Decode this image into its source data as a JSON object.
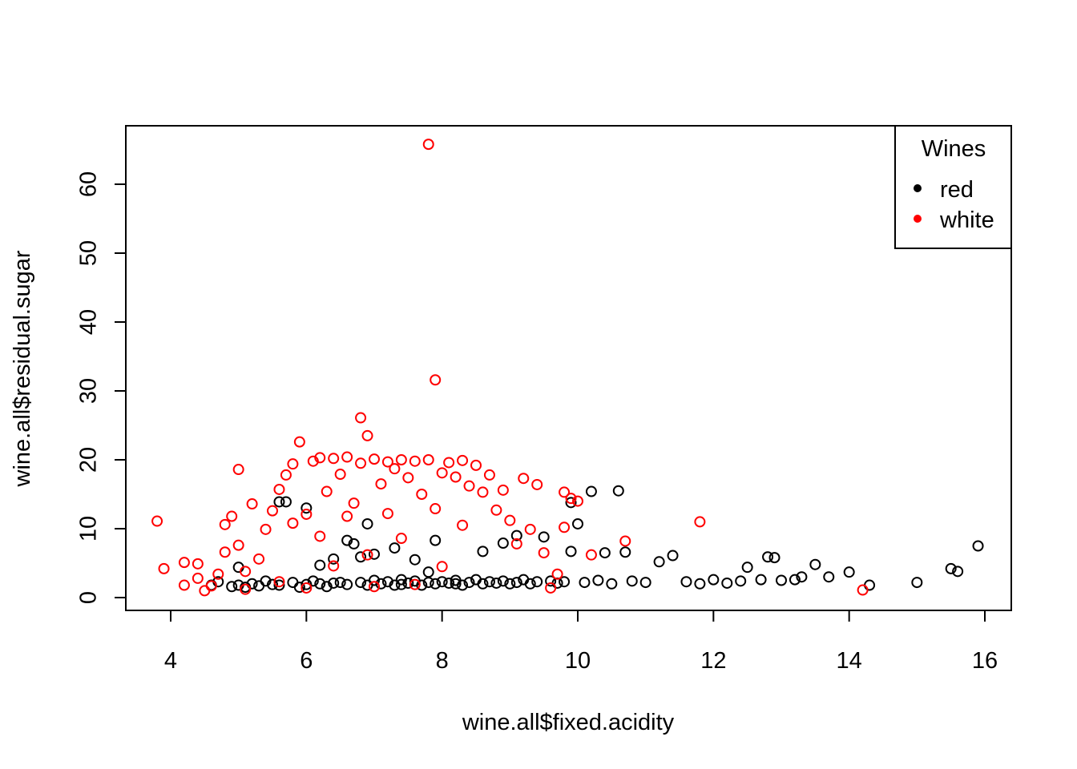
{
  "chart_data": {
    "type": "scatter",
    "title": "",
    "xlabel": "wine.all$fixed.acidity",
    "ylabel": "wine.all$residual.sugar",
    "xlim": [
      3.8,
      15.9
    ],
    "ylim": [
      0.6,
      65.8
    ],
    "x_ticks": [
      4,
      6,
      8,
      10,
      12,
      14,
      16
    ],
    "y_ticks": [
      0,
      10,
      20,
      30,
      40,
      50,
      60
    ],
    "x_tick_labels": [
      "4",
      "6",
      "8",
      "10",
      "12",
      "14",
      "16"
    ],
    "y_tick_labels": [
      "0",
      "10",
      "20",
      "30",
      "40",
      "50",
      "60"
    ],
    "grid": false,
    "legend": {
      "title": "Wines",
      "position": "top-right",
      "entries": [
        {
          "label": "red",
          "color": "#000000"
        },
        {
          "label": "white",
          "color": "#ff0000"
        }
      ]
    },
    "series": [
      {
        "name": "red",
        "color": "#000000",
        "marker": "open-circle",
        "points": [
          [
            4.6,
            1.8
          ],
          [
            4.7,
            2.3
          ],
          [
            4.9,
            1.6
          ],
          [
            5.0,
            1.8
          ],
          [
            5.0,
            4.4
          ],
          [
            5.1,
            1.5
          ],
          [
            5.2,
            2.0
          ],
          [
            5.3,
            1.7
          ],
          [
            5.4,
            2.4
          ],
          [
            5.5,
            1.9
          ],
          [
            5.6,
            1.8
          ],
          [
            5.6,
            13.9
          ],
          [
            5.7,
            13.9
          ],
          [
            5.8,
            2.2
          ],
          [
            5.9,
            1.5
          ],
          [
            6.0,
            13.0
          ],
          [
            6.0,
            1.9
          ],
          [
            6.1,
            2.4
          ],
          [
            6.2,
            2.0
          ],
          [
            6.2,
            4.7
          ],
          [
            6.3,
            1.6
          ],
          [
            6.4,
            2.1
          ],
          [
            6.4,
            5.6
          ],
          [
            6.5,
            2.2
          ],
          [
            6.6,
            1.9
          ],
          [
            6.6,
            8.3
          ],
          [
            6.7,
            7.8
          ],
          [
            6.8,
            2.2
          ],
          [
            6.8,
            5.9
          ],
          [
            6.9,
            1.8
          ],
          [
            6.9,
            10.7
          ],
          [
            7.0,
            2.5
          ],
          [
            7.0,
            6.3
          ],
          [
            7.1,
            2.0
          ],
          [
            7.2,
            2.3
          ],
          [
            7.3,
            1.8
          ],
          [
            7.3,
            7.2
          ],
          [
            7.4,
            2.6
          ],
          [
            7.4,
            1.9
          ],
          [
            7.5,
            2.1
          ],
          [
            7.6,
            2.4
          ],
          [
            7.6,
            5.5
          ],
          [
            7.7,
            1.8
          ],
          [
            7.8,
            2.2
          ],
          [
            7.8,
            3.7
          ],
          [
            7.9,
            2.0
          ],
          [
            7.9,
            8.3
          ],
          [
            8.0,
            2.3
          ],
          [
            8.1,
            2.1
          ],
          [
            8.2,
            2.5
          ],
          [
            8.2,
            2.0
          ],
          [
            8.3,
            1.8
          ],
          [
            8.4,
            2.2
          ],
          [
            8.5,
            2.6
          ],
          [
            8.6,
            2.0
          ],
          [
            8.6,
            6.7
          ],
          [
            8.7,
            2.3
          ],
          [
            8.8,
            2.1
          ],
          [
            8.9,
            2.4
          ],
          [
            8.9,
            7.9
          ],
          [
            9.0,
            2.0
          ],
          [
            9.1,
            2.2
          ],
          [
            9.1,
            9.0
          ],
          [
            9.2,
            2.6
          ],
          [
            9.3,
            2.0
          ],
          [
            9.4,
            2.3
          ],
          [
            9.5,
            8.8
          ],
          [
            9.6,
            2.4
          ],
          [
            9.7,
            2.1
          ],
          [
            9.8,
            2.3
          ],
          [
            9.9,
            6.7
          ],
          [
            9.9,
            13.8
          ],
          [
            10.0,
            10.7
          ],
          [
            10.1,
            2.2
          ],
          [
            10.2,
            15.4
          ],
          [
            10.3,
            2.5
          ],
          [
            10.4,
            6.5
          ],
          [
            10.5,
            2.0
          ],
          [
            10.6,
            15.5
          ],
          [
            10.7,
            6.6
          ],
          [
            10.8,
            2.4
          ],
          [
            11.0,
            2.2
          ],
          [
            11.2,
            5.2
          ],
          [
            11.4,
            6.1
          ],
          [
            11.6,
            2.3
          ],
          [
            11.8,
            2.0
          ],
          [
            12.0,
            2.6
          ],
          [
            12.2,
            2.1
          ],
          [
            12.4,
            2.4
          ],
          [
            12.5,
            4.4
          ],
          [
            12.7,
            2.6
          ],
          [
            12.8,
            5.9
          ],
          [
            12.9,
            5.8
          ],
          [
            13.0,
            2.5
          ],
          [
            13.2,
            2.6
          ],
          [
            13.3,
            3.0
          ],
          [
            13.5,
            4.8
          ],
          [
            13.7,
            3.0
          ],
          [
            14.0,
            3.7
          ],
          [
            14.3,
            1.8
          ],
          [
            15.0,
            2.2
          ],
          [
            15.5,
            4.2
          ],
          [
            15.6,
            3.8
          ],
          [
            15.9,
            7.5
          ]
        ]
      },
      {
        "name": "white",
        "color": "#ff0000",
        "marker": "open-circle",
        "points": [
          [
            3.8,
            11.1
          ],
          [
            3.9,
            4.2
          ],
          [
            4.2,
            5.1
          ],
          [
            4.2,
            1.8
          ],
          [
            4.4,
            2.8
          ],
          [
            4.4,
            4.9
          ],
          [
            4.5,
            1.0
          ],
          [
            4.6,
            1.7
          ],
          [
            4.7,
            3.4
          ],
          [
            4.8,
            6.6
          ],
          [
            4.8,
            10.6
          ],
          [
            4.9,
            11.8
          ],
          [
            5.0,
            18.6
          ],
          [
            5.0,
            7.6
          ],
          [
            5.1,
            1.2
          ],
          [
            5.1,
            3.8
          ],
          [
            5.2,
            13.6
          ],
          [
            5.3,
            5.6
          ],
          [
            5.4,
            9.9
          ],
          [
            5.5,
            12.6
          ],
          [
            5.6,
            15.7
          ],
          [
            5.6,
            2.3
          ],
          [
            5.7,
            17.8
          ],
          [
            5.8,
            19.4
          ],
          [
            5.8,
            10.8
          ],
          [
            5.9,
            22.6
          ],
          [
            6.0,
            12.1
          ],
          [
            6.0,
            1.4
          ],
          [
            6.1,
            19.8
          ],
          [
            6.2,
            20.3
          ],
          [
            6.2,
            8.9
          ],
          [
            6.3,
            15.4
          ],
          [
            6.4,
            20.2
          ],
          [
            6.4,
            4.6
          ],
          [
            6.5,
            17.9
          ],
          [
            6.6,
            20.4
          ],
          [
            6.6,
            11.8
          ],
          [
            6.7,
            13.7
          ],
          [
            6.8,
            26.1
          ],
          [
            6.8,
            19.5
          ],
          [
            6.9,
            23.5
          ],
          [
            6.9,
            6.2
          ],
          [
            7.0,
            20.1
          ],
          [
            7.0,
            1.6
          ],
          [
            7.1,
            16.5
          ],
          [
            7.2,
            19.7
          ],
          [
            7.2,
            12.2
          ],
          [
            7.3,
            18.7
          ],
          [
            7.4,
            20.0
          ],
          [
            7.4,
            8.6
          ],
          [
            7.5,
            17.4
          ],
          [
            7.6,
            19.8
          ],
          [
            7.6,
            1.9
          ],
          [
            7.7,
            15.0
          ],
          [
            7.8,
            65.8
          ],
          [
            7.8,
            20.0
          ],
          [
            7.9,
            31.6
          ],
          [
            7.9,
            12.9
          ],
          [
            8.0,
            18.1
          ],
          [
            8.0,
            4.5
          ],
          [
            8.1,
            19.6
          ],
          [
            8.2,
            17.5
          ],
          [
            8.3,
            19.9
          ],
          [
            8.3,
            10.5
          ],
          [
            8.4,
            16.2
          ],
          [
            8.5,
            19.2
          ],
          [
            8.6,
            15.3
          ],
          [
            8.7,
            17.8
          ],
          [
            8.8,
            12.7
          ],
          [
            8.9,
            15.6
          ],
          [
            9.0,
            11.2
          ],
          [
            9.1,
            7.8
          ],
          [
            9.2,
            17.3
          ],
          [
            9.3,
            9.9
          ],
          [
            9.4,
            16.4
          ],
          [
            9.5,
            6.5
          ],
          [
            9.6,
            1.4
          ],
          [
            9.7,
            3.4
          ],
          [
            9.8,
            15.3
          ],
          [
            9.8,
            10.2
          ],
          [
            9.9,
            14.4
          ],
          [
            10.0,
            14.0
          ],
          [
            10.2,
            6.2
          ],
          [
            10.7,
            8.2
          ],
          [
            11.8,
            11.0
          ],
          [
            14.2,
            1.1
          ]
        ]
      }
    ]
  }
}
